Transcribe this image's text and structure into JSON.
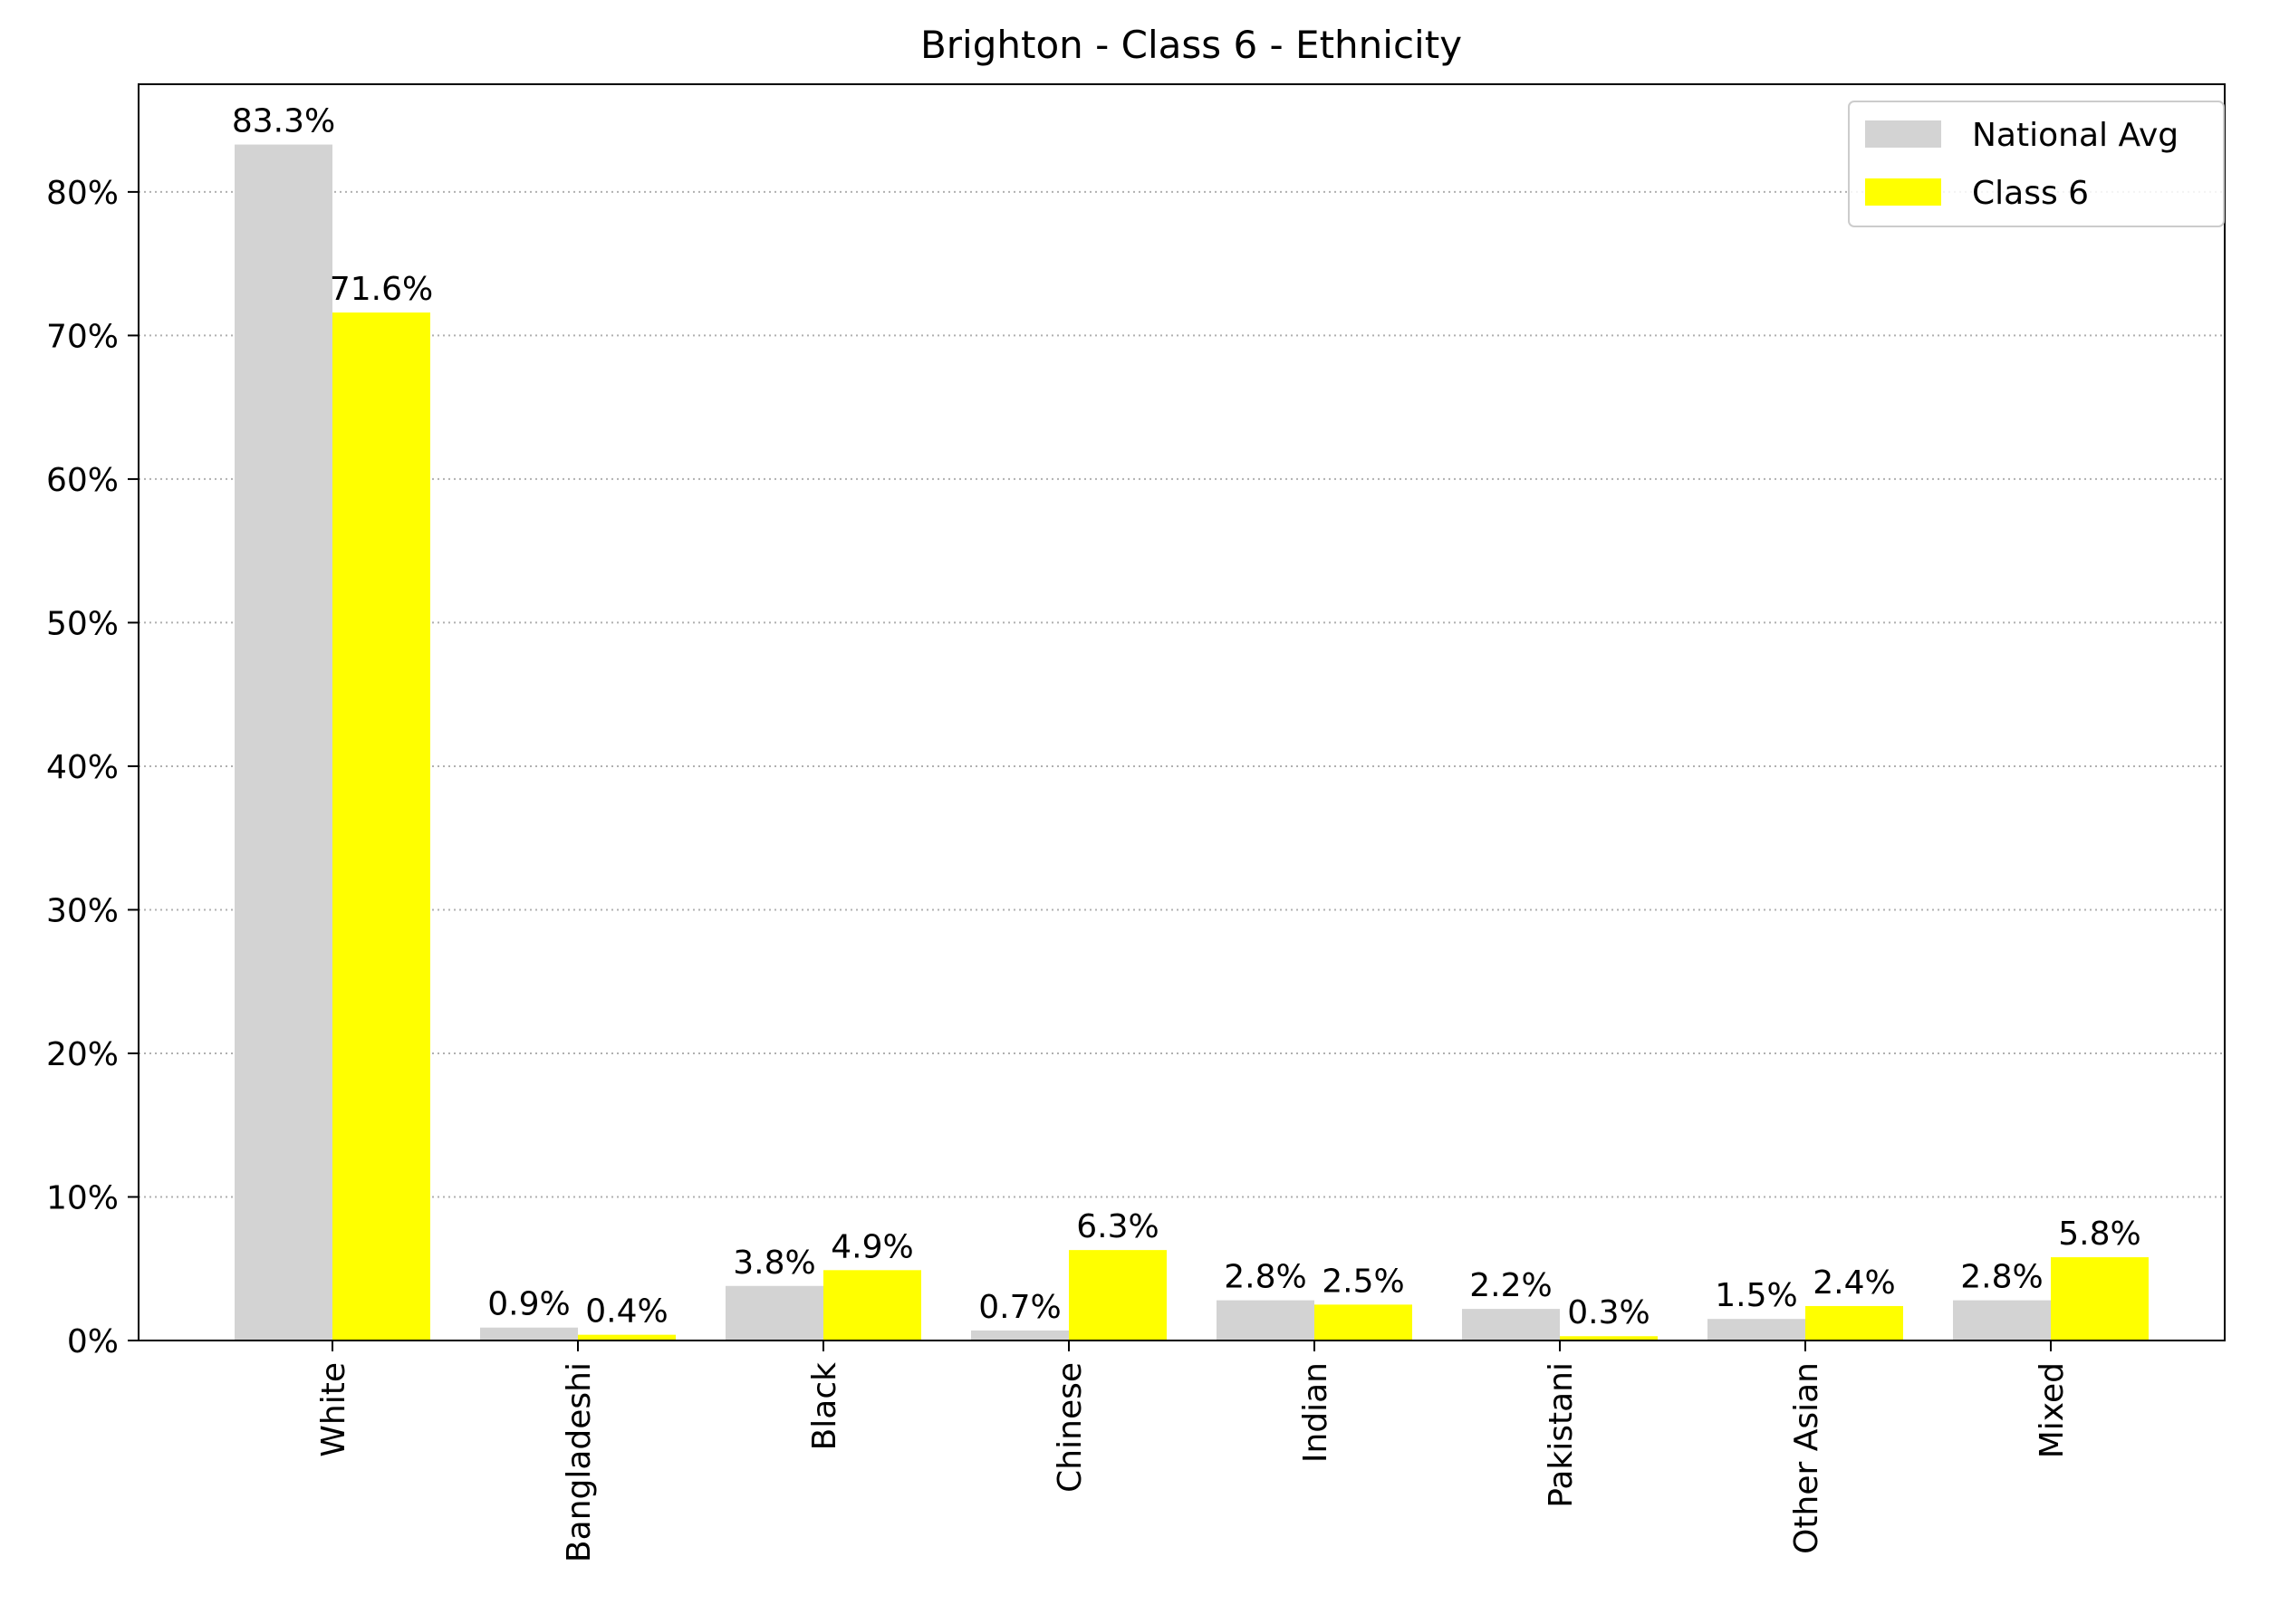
{
  "chart_data": {
    "type": "bar",
    "title": "Brighton - Class 6 - Ethnicity",
    "xlabel": "",
    "ylabel": "",
    "categories": [
      "White",
      "Bangladeshi",
      "Black",
      "Chinese",
      "Indian",
      "Pakistani",
      "Other Asian",
      "Mixed"
    ],
    "series": [
      {
        "name": "National Avg",
        "color": "#d3d3d3",
        "values": [
          83.3,
          0.9,
          3.8,
          0.7,
          2.8,
          2.2,
          1.5,
          2.8
        ],
        "labels": [
          "83.3%",
          "0.9%",
          "3.8%",
          "0.7%",
          "2.8%",
          "2.2%",
          "1.5%",
          "2.8%"
        ]
      },
      {
        "name": "Class 6",
        "color": "#ffff00",
        "values": [
          71.6,
          0.4,
          4.9,
          6.3,
          2.5,
          0.3,
          2.4,
          5.8
        ],
        "labels": [
          "71.6%",
          "0.4%",
          "4.9%",
          "6.3%",
          "2.5%",
          "0.3%",
          "2.4%",
          "5.8%"
        ]
      }
    ],
    "ylim": [
      0,
      87.5
    ],
    "yticks": [
      0,
      10,
      20,
      30,
      40,
      50,
      60,
      70,
      80
    ],
    "ytick_labels": [
      "0%",
      "10%",
      "20%",
      "30%",
      "40%",
      "50%",
      "60%",
      "70%",
      "80%"
    ],
    "grid": "y-dotted",
    "legend": "top-right"
  }
}
